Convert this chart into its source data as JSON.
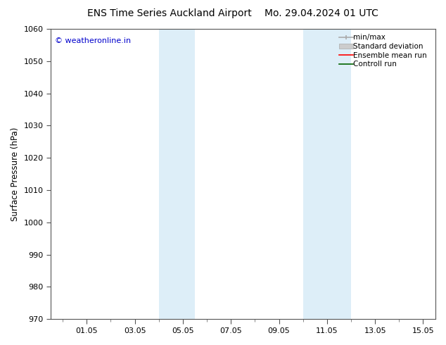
{
  "title_left": "ENS Time Series Auckland Airport",
  "title_right": "Mo. 29.04.2024 01 UTC",
  "ylabel": "Surface Pressure (hPa)",
  "ylim": [
    970,
    1060
  ],
  "yticks": [
    970,
    980,
    990,
    1000,
    1010,
    1020,
    1030,
    1040,
    1050,
    1060
  ],
  "xtick_labels": [
    "01.05",
    "03.05",
    "05.05",
    "07.05",
    "09.05",
    "11.05",
    "13.05",
    "15.05"
  ],
  "xtick_positions": [
    2,
    4,
    6,
    8,
    10,
    12,
    14,
    16
  ],
  "xlim": [
    0.5,
    16.5
  ],
  "shaded_bands": [
    {
      "x_start": 5.0,
      "x_end": 6.5
    },
    {
      "x_start": 11.0,
      "x_end": 13.0
    }
  ],
  "shade_color": "#ddeef8",
  "copyright_text": "© weatheronline.in",
  "copyright_color": "#0000cc",
  "legend_labels": [
    "min/max",
    "Standard deviation",
    "Ensemble mean run",
    "Controll run"
  ],
  "bg_color": "#ffffff",
  "title_fontsize": 10,
  "axis_label_fontsize": 8.5,
  "tick_fontsize": 8,
  "legend_fontsize": 7.5
}
